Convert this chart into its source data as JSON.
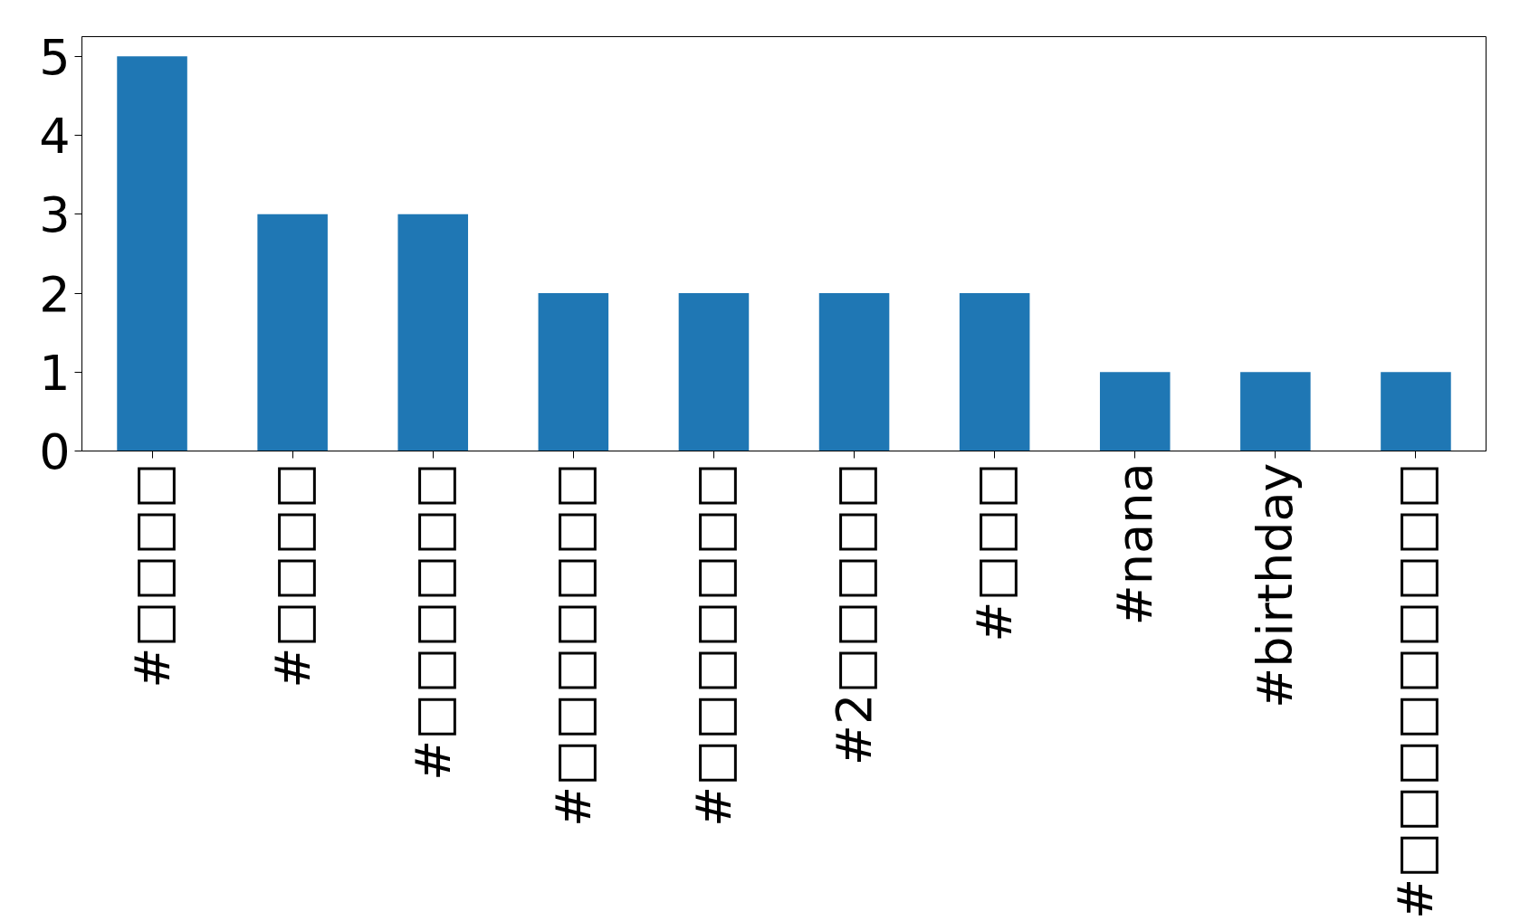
{
  "chart_data": {
    "type": "bar",
    "categories": [
      "#□□□□",
      "#□□□□",
      "#□□□□□□",
      "#□□□□□□□",
      "#□□□□□□□",
      "#2□□□□□",
      "#□□□",
      "#nana",
      "#birthday",
      "#□□□□□□□□□"
    ],
    "values": [
      5,
      3,
      3,
      2,
      2,
      2,
      2,
      1,
      1,
      1
    ],
    "color": "#1f77b4",
    "ylim": [
      0,
      5.25
    ],
    "yticks": [
      0,
      1,
      2,
      3,
      4,
      5
    ]
  }
}
